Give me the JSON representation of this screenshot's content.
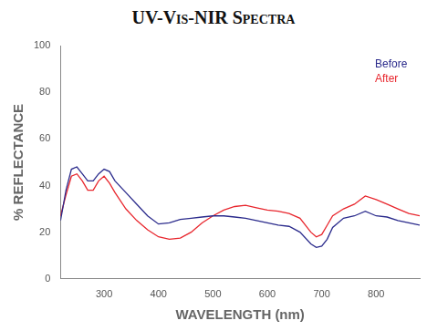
{
  "chart_data": {
    "type": "line",
    "title": "UV-Vis-NIR Spectra",
    "x_label": "WAVELENGTH (nm)",
    "y_label": "% REFLECTANCE",
    "x": [
      220,
      230,
      240,
      250,
      260,
      270,
      280,
      290,
      300,
      310,
      320,
      340,
      360,
      380,
      400,
      420,
      440,
      460,
      480,
      500,
      520,
      540,
      560,
      580,
      600,
      620,
      640,
      660,
      680,
      690,
      700,
      710,
      720,
      740,
      760,
      780,
      800,
      820,
      840,
      860,
      880
    ],
    "series": [
      {
        "name": "Before",
        "color": "#2b2b8c",
        "values": [
          25,
          38,
          47,
          48,
          45,
          42,
          42,
          45,
          47,
          46,
          42,
          37,
          32,
          27,
          23.5,
          24,
          25.5,
          26,
          26.5,
          27,
          27,
          26.5,
          26,
          25,
          24,
          23,
          22.5,
          20,
          15,
          13.5,
          14,
          17,
          22,
          26,
          27,
          29,
          27,
          26.5,
          25,
          24,
          23
        ]
      },
      {
        "name": "After",
        "color": "#e8262d",
        "values": [
          27,
          36,
          44,
          45,
          42,
          38,
          38,
          42,
          44,
          41,
          37,
          30,
          25,
          21,
          18,
          17,
          17.5,
          20,
          24,
          27,
          29.5,
          31,
          31.5,
          30.5,
          29.5,
          29,
          28,
          26,
          20,
          18,
          19,
          23,
          27,
          30,
          32,
          35.5,
          34,
          32,
          30,
          28,
          27
        ]
      }
    ],
    "xlim": [
      220,
      880
    ],
    "xticks": [
      300,
      400,
      500,
      600,
      700,
      800
    ],
    "ylim": [
      0,
      100
    ],
    "yticks": [
      0,
      20,
      40,
      60,
      80,
      100
    ],
    "grid": false,
    "legend": "upper right",
    "marker": "none",
    "line_style": "solid"
  }
}
